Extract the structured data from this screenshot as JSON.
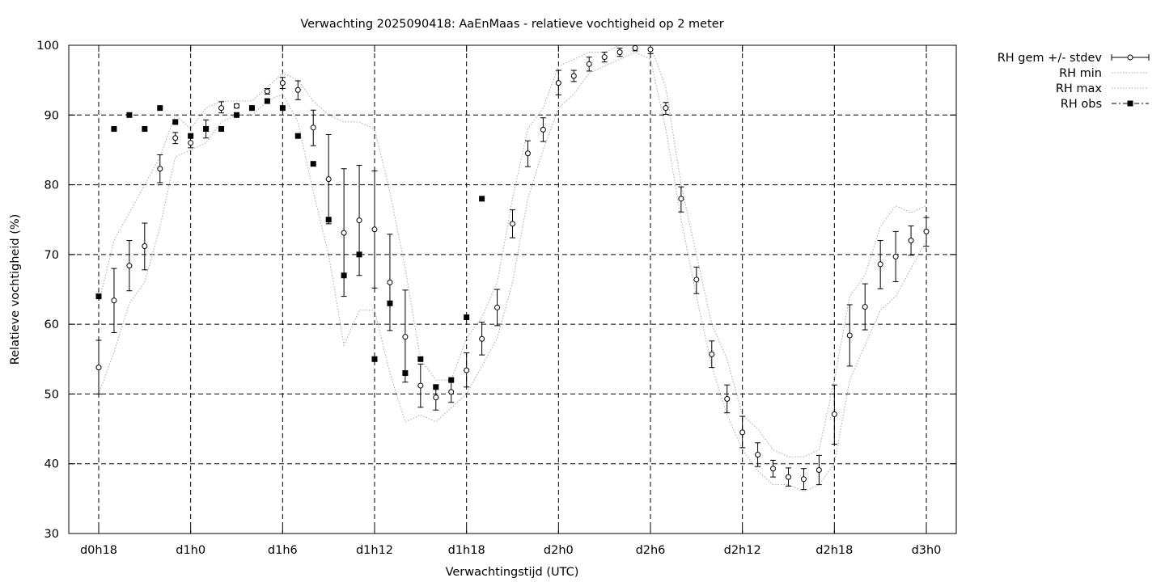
{
  "chart_data": {
    "type": "line",
    "title": "Verwachting 2025090418: AaEnMaas - relatieve vochtigheid op 2 meter",
    "xlabel": "Verwachtingstijd (UTC)",
    "ylabel": "Relatieve vochtigheid (%)",
    "x_unit": "forecast hours since d0h18",
    "xlim": [
      -2,
      56
    ],
    "ylim": [
      30,
      100
    ],
    "yticks": [
      30,
      40,
      50,
      60,
      70,
      80,
      90,
      100
    ],
    "xticks": [
      {
        "x": 0,
        "label": "d0h18"
      },
      {
        "x": 6,
        "label": "d1h0"
      },
      {
        "x": 12,
        "label": "d1h6"
      },
      {
        "x": 18,
        "label": "d1h12"
      },
      {
        "x": 24,
        "label": "d1h18"
      },
      {
        "x": 30,
        "label": "d2h0"
      },
      {
        "x": 36,
        "label": "d2h6"
      },
      {
        "x": 42,
        "label": "d2h12"
      },
      {
        "x": 48,
        "label": "d2h18"
      },
      {
        "x": 54,
        "label": "d3h0"
      }
    ],
    "grid": true,
    "legend_position": "outside-top-right",
    "series": [
      {
        "name": "RH gem +/- stdev",
        "style": "errorbars",
        "x": [
          0,
          1,
          2,
          3,
          4,
          5,
          6,
          7,
          8,
          9,
          10,
          11,
          12,
          13,
          14,
          15,
          16,
          17,
          18,
          19,
          20,
          21,
          22,
          23,
          24,
          25,
          26,
          27,
          28,
          29,
          30,
          31,
          32,
          33,
          34,
          35,
          36,
          37,
          38,
          39,
          40,
          41,
          42,
          43,
          44,
          45,
          46,
          47,
          48,
          49,
          50,
          51,
          52,
          53,
          54
        ],
        "mean": [
          53.8,
          63.4,
          68.4,
          71.2,
          82.3,
          86.7,
          86.0,
          88.0,
          91.0,
          91.3,
          91.0,
          93.4,
          94.6,
          93.6,
          88.2,
          80.8,
          73.1,
          74.9,
          73.6,
          66.0,
          58.2,
          51.2,
          49.5,
          50.3,
          53.4,
          57.9,
          62.4,
          74.4,
          84.5,
          87.9,
          94.6,
          95.6,
          97.3,
          98.3,
          99.0,
          99.6,
          99.4,
          91.0,
          78.0,
          66.4,
          55.7,
          49.3,
          44.5,
          41.3,
          39.3,
          38.1,
          37.8,
          39.1,
          47.1,
          58.4,
          62.5,
          68.6,
          69.7,
          72.0,
          73.3
        ],
        "low": [
          50.0,
          58.8,
          64.8,
          67.8,
          80.3,
          85.9,
          85.3,
          86.7,
          90.3,
          91.0,
          90.9,
          93.0,
          93.8,
          92.2,
          85.6,
          74.4,
          64.0,
          67.0,
          65.2,
          59.1,
          51.7,
          48.1,
          47.7,
          48.8,
          51.0,
          55.6,
          59.8,
          72.4,
          82.6,
          86.2,
          92.9,
          94.8,
          96.3,
          97.6,
          98.4,
          99.2,
          98.8,
          90.1,
          76.1,
          64.4,
          53.8,
          47.3,
          42.3,
          39.6,
          38.1,
          36.8,
          36.3,
          37.0,
          42.8,
          54.0,
          59.2,
          65.1,
          66.1,
          69.9,
          71.2
        ],
        "high": [
          57.7,
          68.0,
          72.0,
          74.5,
          84.3,
          87.5,
          86.7,
          89.3,
          91.9,
          91.6,
          91.1,
          93.8,
          95.4,
          94.9,
          90.7,
          87.2,
          82.3,
          82.8,
          82.0,
          72.9,
          64.9,
          54.3,
          51.3,
          51.9,
          55.9,
          60.3,
          65.0,
          76.4,
          86.3,
          89.6,
          96.4,
          96.4,
          98.3,
          99.0,
          99.6,
          100.0,
          100.0,
          91.8,
          79.7,
          68.2,
          57.6,
          51.3,
          46.8,
          43.0,
          40.5,
          39.4,
          39.3,
          41.2,
          51.3,
          62.8,
          65.8,
          72.0,
          73.3,
          74.1,
          75.3
        ]
      },
      {
        "name": "RH min",
        "style": "dotted",
        "x": [
          0,
          1,
          2,
          3,
          4,
          5,
          6,
          7,
          8,
          9,
          10,
          11,
          12,
          13,
          14,
          15,
          16,
          17,
          18,
          19,
          20,
          21,
          22,
          23,
          24,
          25,
          26,
          27,
          28,
          29,
          30,
          31,
          32,
          33,
          34,
          35,
          36,
          37,
          38,
          39,
          40,
          41,
          42,
          43,
          44,
          45,
          46,
          47,
          48,
          49,
          50,
          51,
          52,
          53,
          54
        ],
        "values": [
          50,
          56,
          63,
          66,
          74,
          84,
          85,
          86,
          89,
          90,
          90,
          92,
          93,
          89,
          79,
          70,
          57,
          62,
          62,
          53,
          46,
          47,
          46,
          48,
          50,
          54,
          58,
          66,
          78,
          85,
          91,
          93,
          96,
          97,
          98,
          99,
          98,
          88,
          75,
          64,
          54,
          47,
          42,
          39,
          37,
          37,
          36,
          37,
          40,
          52,
          57,
          62,
          64,
          68,
          72
        ]
      },
      {
        "name": "RH max",
        "style": "dotted",
        "x": [
          0,
          1,
          2,
          3,
          4,
          5,
          6,
          7,
          8,
          9,
          10,
          11,
          12,
          13,
          14,
          15,
          16,
          17,
          18,
          19,
          20,
          21,
          22,
          23,
          24,
          25,
          26,
          27,
          28,
          29,
          30,
          31,
          32,
          33,
          34,
          35,
          36,
          37,
          38,
          39,
          40,
          41,
          42,
          43,
          44,
          45,
          46,
          47,
          48,
          49,
          50,
          51,
          52,
          53,
          54
        ],
        "values": [
          63,
          72,
          76,
          80,
          84,
          90,
          88,
          91,
          92,
          92,
          92,
          94,
          96,
          95,
          92,
          90,
          89,
          89,
          88,
          79,
          68,
          55,
          52,
          52,
          58,
          61,
          66,
          78,
          88,
          91,
          97,
          98,
          99,
          99,
          100,
          100,
          100,
          94,
          80,
          70,
          60,
          55,
          47,
          45,
          42,
          41,
          41,
          42,
          52,
          64,
          67,
          74,
          77,
          76,
          77
        ]
      },
      {
        "name": "RH obs",
        "style": "points",
        "x": [
          0,
          1,
          2,
          3,
          4,
          5,
          6,
          7,
          8,
          9,
          10,
          11,
          12,
          13,
          14,
          15,
          16,
          17,
          18,
          19,
          20,
          21,
          22,
          23,
          24,
          25
        ],
        "values": [
          64,
          88,
          90,
          88,
          91,
          89,
          87,
          88,
          88,
          90,
          91,
          92,
          91,
          87,
          83,
          75,
          67,
          70,
          55,
          63,
          53,
          55,
          51,
          52,
          61,
          78
        ]
      }
    ]
  }
}
